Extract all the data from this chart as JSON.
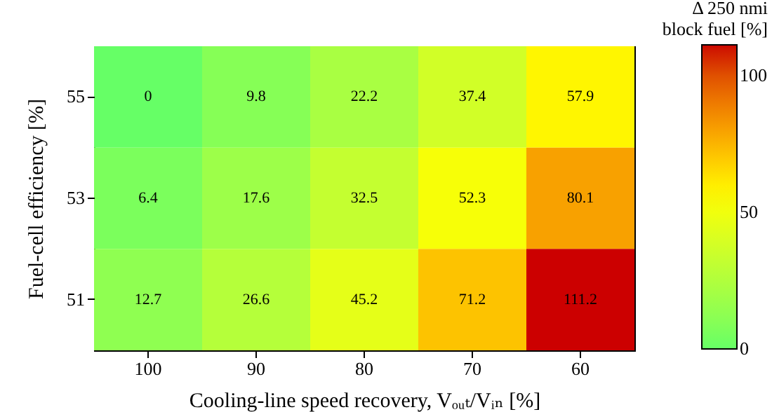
{
  "chart_data": {
    "type": "heatmap",
    "xlabel": "Cooling-line speed recovery, Vₒᵤₜ/Vᵢₙ [%]",
    "ylabel": "Fuel-cell efficiency [%]",
    "clabel": "Δ 250 nmi block fuel [%]",
    "categories": [
      "100",
      "90",
      "80",
      "70",
      "60"
    ],
    "y_categories": [
      "55",
      "53",
      "51"
    ],
    "cells": [
      [
        0,
        9.8,
        22.2,
        37.4,
        57.9
      ],
      [
        6.4,
        17.6,
        32.5,
        52.3,
        80.1
      ],
      [
        12.7,
        26.6,
        45.2,
        71.2,
        111.2
      ]
    ],
    "data_labels": true,
    "clim": [
      0,
      111.2
    ],
    "cticks": [
      0,
      50,
      100
    ]
  }
}
